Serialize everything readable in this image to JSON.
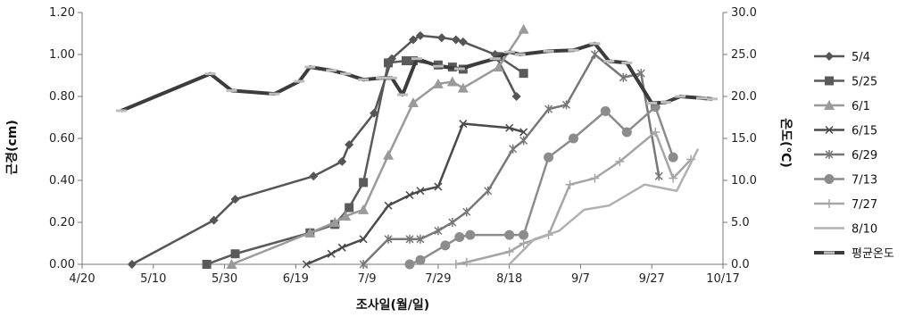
{
  "chart_data": {
    "type": "line",
    "title": "",
    "xlabel": "조사일(월/일)",
    "ylabel": "근경(cm)",
    "y2label": "온도(℃)",
    "xlim": [
      "4/20",
      "10/17"
    ],
    "ylim": [
      0,
      1.2
    ],
    "y2lim": [
      0,
      30
    ],
    "grid": false,
    "legend_position": "right",
    "x_ticks": [
      "4/20",
      "5/10",
      "5/30",
      "6/19",
      "7/9",
      "7/29",
      "8/18",
      "9/7",
      "9/27",
      "10/17"
    ],
    "y_ticks": [
      "0.00",
      "0.20",
      "0.40",
      "0.60",
      "0.80",
      "1.00",
      "1.20"
    ],
    "y2_ticks": [
      "0.0",
      "5.0",
      "10.0",
      "15.0",
      "20.0",
      "25.0",
      "30.0"
    ],
    "series": [
      {
        "name": "5/4",
        "marker": "diamond",
        "color": "#555555",
        "width": 2.5,
        "axis": "left",
        "points": [
          [
            "5/4",
            0.0
          ],
          [
            "5/27",
            0.21
          ],
          [
            "6/2",
            0.31
          ],
          [
            "6/24",
            0.42
          ],
          [
            "7/2",
            0.49
          ],
          [
            "7/4",
            0.57
          ],
          [
            "7/11",
            0.72
          ],
          [
            "7/16",
            0.98
          ],
          [
            "7/22",
            1.07
          ],
          [
            "7/24",
            1.09
          ],
          [
            "7/30",
            1.08
          ],
          [
            "8/3",
            1.07
          ],
          [
            "8/5",
            1.06
          ],
          [
            "8/14",
            1.0
          ],
          [
            "8/20",
            0.8
          ]
        ]
      },
      {
        "name": "5/25",
        "marker": "square",
        "color": "#5a5a5a",
        "width": 2.5,
        "axis": "left",
        "points": [
          [
            "5/25",
            0.0
          ],
          [
            "6/2",
            0.05
          ],
          [
            "6/23",
            0.15
          ],
          [
            "6/30",
            0.19
          ],
          [
            "7/4",
            0.27
          ],
          [
            "7/8",
            0.39
          ],
          [
            "7/15",
            0.96
          ],
          [
            "7/20",
            0.97
          ],
          [
            "7/22",
            0.97
          ],
          [
            "7/29",
            0.95
          ],
          [
            "8/2",
            0.94
          ],
          [
            "8/5",
            0.93
          ],
          [
            "8/15",
            0.99
          ],
          [
            "8/22",
            0.91
          ]
        ]
      },
      {
        "name": "6/1",
        "marker": "triangle",
        "color": "#9a9a9a",
        "width": 2.5,
        "axis": "left",
        "points": [
          [
            "6/1",
            0.0
          ],
          [
            "6/23",
            0.15
          ],
          [
            "6/30",
            0.2
          ],
          [
            "7/3",
            0.23
          ],
          [
            "7/8",
            0.26
          ],
          [
            "7/15",
            0.52
          ],
          [
            "7/22",
            0.77
          ],
          [
            "7/29",
            0.86
          ],
          [
            "8/2",
            0.87
          ],
          [
            "8/5",
            0.84
          ],
          [
            "8/15",
            0.94
          ],
          [
            "8/22",
            1.12
          ]
        ]
      },
      {
        "name": "6/15",
        "marker": "x",
        "color": "#4a4a4a",
        "width": 2.5,
        "axis": "left",
        "points": [
          [
            "6/22",
            0.0
          ],
          [
            "6/29",
            0.05
          ],
          [
            "7/2",
            0.08
          ],
          [
            "7/8",
            0.12
          ],
          [
            "7/15",
            0.28
          ],
          [
            "7/21",
            0.33
          ],
          [
            "7/24",
            0.35
          ],
          [
            "7/29",
            0.37
          ],
          [
            "8/5",
            0.67
          ],
          [
            "8/18",
            0.65
          ],
          [
            "8/22",
            0.63
          ]
        ]
      },
      {
        "name": "6/29",
        "marker": "star",
        "color": "#777777",
        "width": 2.5,
        "axis": "left",
        "points": [
          [
            "7/8",
            0.0
          ],
          [
            "7/15",
            0.12
          ],
          [
            "7/21",
            0.12
          ],
          [
            "7/24",
            0.12
          ],
          [
            "7/29",
            0.16
          ],
          [
            "8/2",
            0.2
          ],
          [
            "8/6",
            0.25
          ],
          [
            "8/12",
            0.35
          ],
          [
            "8/19",
            0.55
          ],
          [
            "8/22",
            0.59
          ],
          [
            "8/29",
            0.74
          ],
          [
            "9/3",
            0.76
          ],
          [
            "9/11",
            1.0
          ],
          [
            "9/19",
            0.89
          ],
          [
            "9/24",
            0.91
          ],
          [
            "9/29",
            0.42
          ]
        ]
      },
      {
        "name": "7/13",
        "marker": "circle",
        "color": "#8c8c8c",
        "width": 2.5,
        "axis": "left",
        "points": [
          [
            "7/21",
            0.0
          ],
          [
            "7/24",
            0.02
          ],
          [
            "7/31",
            0.09
          ],
          [
            "8/4",
            0.13
          ],
          [
            "8/7",
            0.14
          ],
          [
            "8/18",
            0.14
          ],
          [
            "8/22",
            0.14
          ],
          [
            "8/29",
            0.51
          ],
          [
            "9/5",
            0.6
          ],
          [
            "9/14",
            0.73
          ],
          [
            "9/20",
            0.63
          ],
          [
            "9/28",
            0.75
          ],
          [
            "10/3",
            0.51
          ]
        ]
      },
      {
        "name": "7/27",
        "marker": "plus",
        "color": "#a5a5a5",
        "width": 2.5,
        "axis": "left",
        "points": [
          [
            "8/3",
            0.0
          ],
          [
            "8/6",
            0.01
          ],
          [
            "8/18",
            0.06
          ],
          [
            "8/22",
            0.1
          ],
          [
            "8/29",
            0.14
          ],
          [
            "9/4",
            0.38
          ],
          [
            "9/11",
            0.41
          ],
          [
            "9/18",
            0.49
          ],
          [
            "9/28",
            0.63
          ],
          [
            "10/3",
            0.41
          ],
          [
            "10/8",
            0.5
          ]
        ]
      },
      {
        "name": "8/10",
        "marker": "none",
        "color": "#b0b0b0",
        "width": 2.5,
        "axis": "left",
        "points": [
          [
            "8/18",
            0.0
          ],
          [
            "8/25",
            0.12
          ],
          [
            "9/1",
            0.16
          ],
          [
            "9/8",
            0.26
          ],
          [
            "9/15",
            0.28
          ],
          [
            "9/25",
            0.38
          ],
          [
            "10/4",
            0.35
          ],
          [
            "10/10",
            0.55
          ]
        ]
      },
      {
        "name": "평균온도",
        "marker": "dash",
        "color": "#3c3c3c",
        "width": 4,
        "axis": "right",
        "points": [
          [
            "5/1",
            18.3
          ],
          [
            "5/26",
            22.7
          ],
          [
            "6/1",
            20.7
          ],
          [
            "6/13",
            20.3
          ],
          [
            "6/20",
            21.8
          ],
          [
            "6/23",
            23.5
          ],
          [
            "6/29",
            23.1
          ],
          [
            "7/3",
            22.7
          ],
          [
            "7/8",
            22.0
          ],
          [
            "7/13",
            22.2
          ],
          [
            "7/16",
            22.2
          ],
          [
            "7/19",
            20.2
          ],
          [
            "7/23",
            24.5
          ],
          [
            "7/29",
            23.6
          ],
          [
            "8/4",
            23.3
          ],
          [
            "8/14",
            24.5
          ],
          [
            "8/18",
            25.3
          ],
          [
            "8/21",
            25.0
          ],
          [
            "8/29",
            25.4
          ],
          [
            "9/5",
            25.5
          ],
          [
            "9/11",
            26.3
          ],
          [
            "9/15",
            24.2
          ],
          [
            "9/20",
            24.0
          ],
          [
            "9/27",
            19.2
          ],
          [
            "10/1",
            19.3
          ],
          [
            "10/5",
            20.0
          ],
          [
            "10/11",
            19.8
          ],
          [
            "10/14",
            19.7
          ]
        ]
      }
    ]
  }
}
